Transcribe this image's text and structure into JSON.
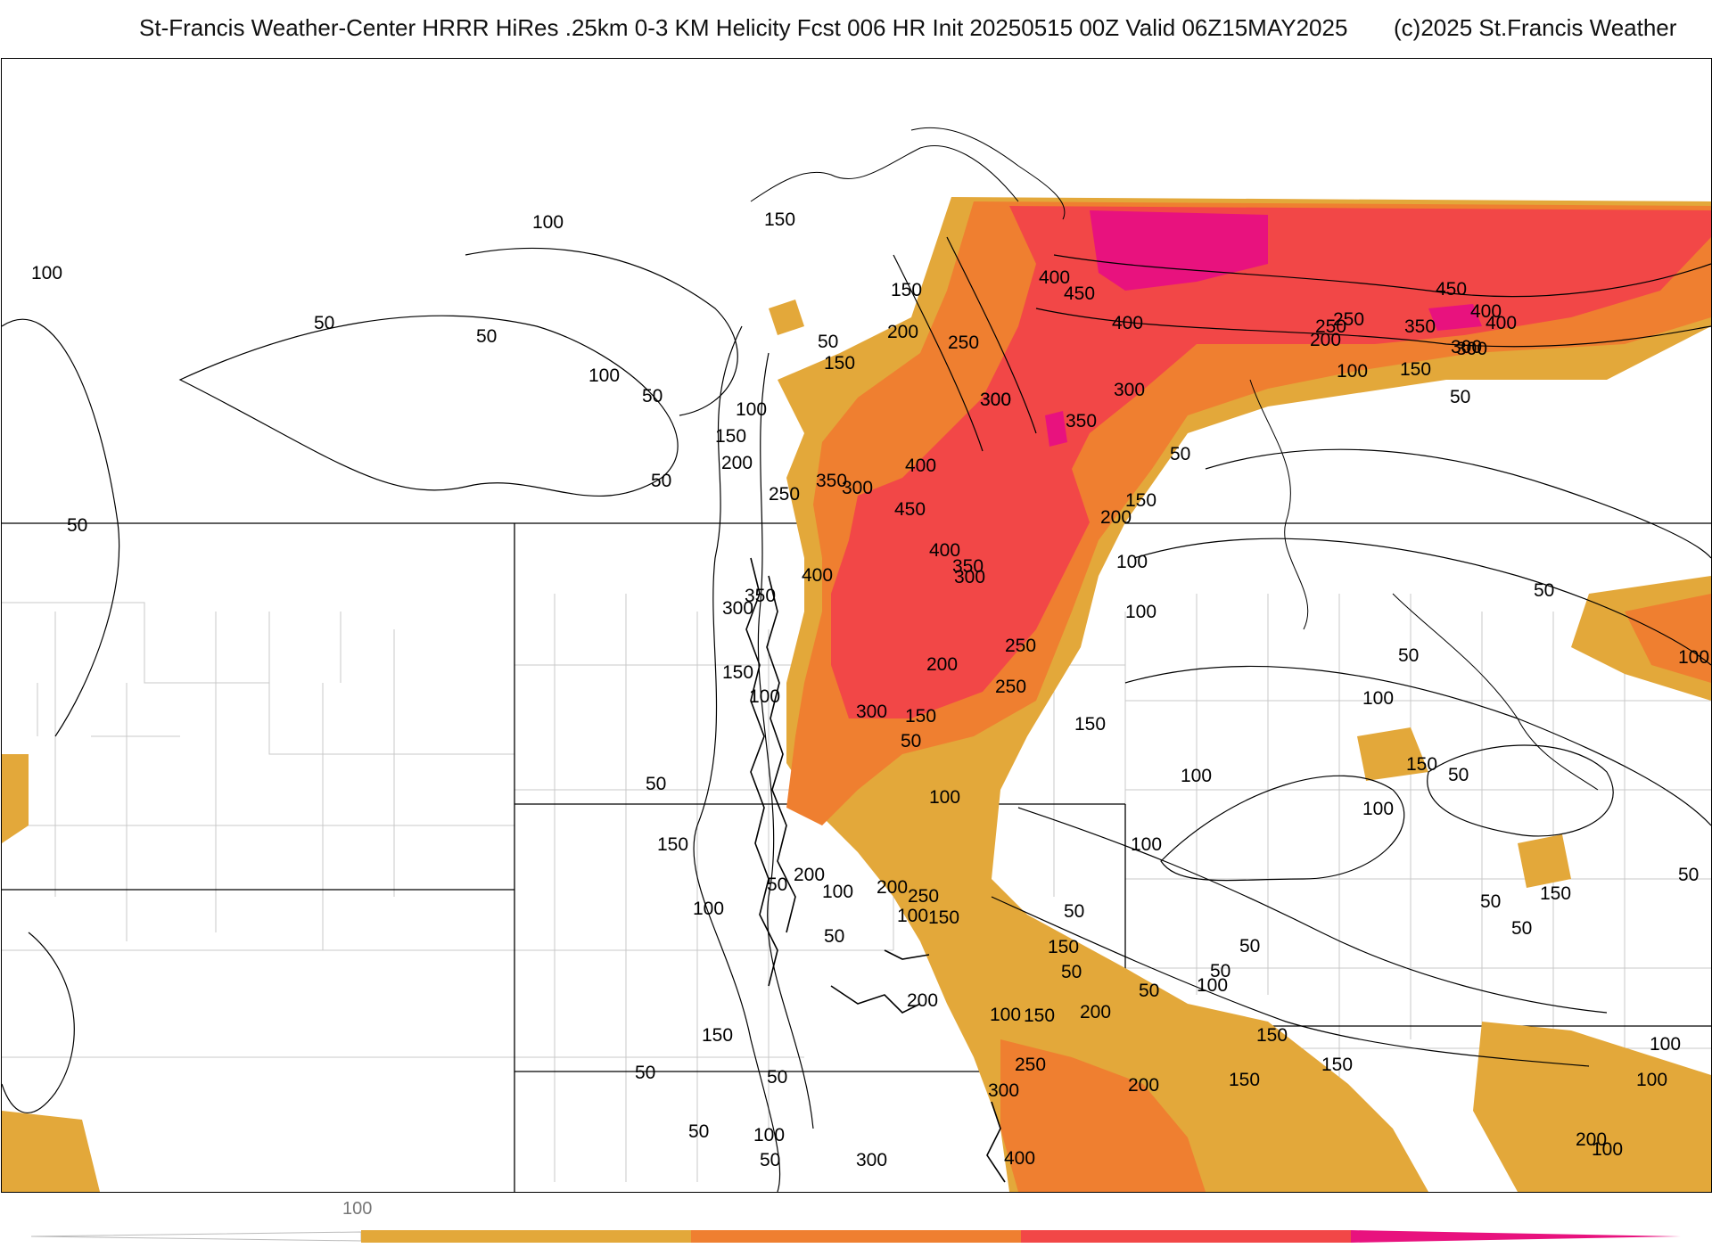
{
  "header": {
    "title": "St-Francis Weather-Center HRRR HiRes .25km 0-3 KM Helicity Fcst 006 HR Init 20250515 00Z  Valid 06Z15MAY2025",
    "copyright": "(c)2025 St.Francis Weather"
  },
  "legend": {
    "tick_label": "100",
    "colors": [
      "#e3a83a",
      "#ef7f30",
      "#f24747",
      "#e8127e"
    ]
  },
  "map": {
    "contour_labels": [
      "100",
      "150",
      "100",
      "50",
      "50",
      "100",
      "50",
      "50",
      "150",
      "200",
      "250",
      "300",
      "400",
      "450",
      "400",
      "250",
      "200",
      "350",
      "300",
      "450",
      "400",
      "100",
      "150",
      "300",
      "400",
      "350",
      "250",
      "300",
      "50",
      "300",
      "50",
      "150",
      "100",
      "200",
      "300",
      "400",
      "350",
      "450",
      "400",
      "350",
      "300",
      "400",
      "350",
      "200",
      "300",
      "250",
      "150",
      "150",
      "100",
      "150",
      "200",
      "250",
      "300",
      "250",
      "100",
      "50",
      "150",
      "100",
      "150",
      "50",
      "50",
      "100",
      "50",
      "50",
      "100",
      "100",
      "100",
      "50",
      "100",
      "150",
      "100",
      "200",
      "150",
      "200",
      "250",
      "300",
      "400",
      "150",
      "100",
      "200",
      "150",
      "150",
      "100",
      "200",
      "50",
      "50",
      "50",
      "50",
      "50",
      "50",
      "50",
      "100",
      "150",
      "100",
      "200",
      "250",
      "100",
      "150",
      "200",
      "100",
      "50",
      "150",
      "100",
      "50",
      "100",
      "50",
      "50",
      "150",
      "50",
      "50",
      "300",
      "150",
      "100",
      "50",
      "50"
    ]
  }
}
